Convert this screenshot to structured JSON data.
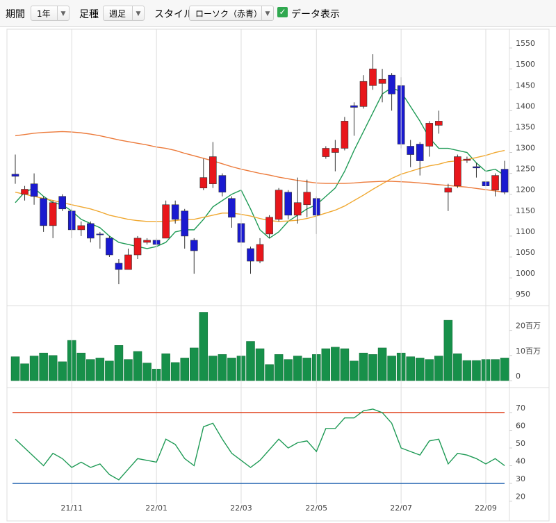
{
  "toolbar": {
    "period_label": "期間",
    "period": "1年",
    "bar_label": "足種",
    "bar": "週足",
    "style_label": "スタイル",
    "style": "ローソク（赤青）",
    "data_label": "データ表示",
    "data_checked": true
  },
  "chart_data": [
    {
      "type": "candlestick",
      "up_color": "#e8161b",
      "down_color": "#1a1ad0",
      "open": [
        1248,
        1200,
        1225,
        1190,
        1125,
        1195,
        1160,
        1115,
        1130,
        1105,
        1095,
        1035,
        1020,
        1055,
        1085,
        1090,
        1095,
        1175,
        1160,
        1090,
        1215,
        1225,
        1245,
        1190,
        1130,
        1070,
        1040,
        1105,
        1140,
        1205,
        1150,
        1175,
        1190,
        1290,
        1300,
        1310,
        1412,
        1410,
        1460,
        1465,
        1485,
        1460,
        1315,
        1320,
        1315,
        1365,
        1205,
        1220,
        1281,
        1266,
        1230,
        1210,
        1260
      ],
      "high": [
        1295,
        1220,
        1250,
        1195,
        1185,
        1200,
        1165,
        1135,
        1135,
        1110,
        1100,
        1045,
        1070,
        1100,
        1095,
        1095,
        1185,
        1185,
        1165,
        1095,
        1285,
        1325,
        1250,
        1195,
        1140,
        1075,
        1095,
        1150,
        1215,
        1210,
        1240,
        1235,
        1195,
        1315,
        1330,
        1385,
        1420,
        1485,
        1535,
        1500,
        1490,
        1480,
        1330,
        1325,
        1375,
        1400,
        1225,
        1295,
        1290,
        1275,
        1240,
        1250,
        1280
      ],
      "low": [
        1225,
        1185,
        1175,
        1110,
        1095,
        1160,
        1095,
        1100,
        1085,
        1070,
        1050,
        985,
        1020,
        1045,
        1080,
        1075,
        1095,
        1130,
        1070,
        1010,
        1210,
        1215,
        1195,
        1120,
        1075,
        1010,
        1035,
        1095,
        1135,
        1140,
        1130,
        1145,
        1105,
        1285,
        1255,
        1305,
        1340,
        1405,
        1450,
        1420,
        1400,
        1310,
        1265,
        1245,
        1290,
        1345,
        1160,
        1215,
        1275,
        1240,
        1210,
        1195,
        1200
      ],
      "close": [
        1243,
        1212,
        1195,
        1125,
        1180,
        1165,
        1115,
        1125,
        1095,
        1103,
        1055,
        1020,
        1055,
        1095,
        1090,
        1080,
        1175,
        1140,
        1100,
        1065,
        1240,
        1290,
        1205,
        1145,
        1085,
        1040,
        1080,
        1145,
        1210,
        1150,
        1180,
        1205,
        1150,
        1310,
        1310,
        1375,
        1408,
        1470,
        1500,
        1475,
        1440,
        1320,
        1295,
        1280,
        1370,
        1375,
        1215,
        1290,
        1284,
        1263,
        1220,
        1245,
        1205
      ],
      "moving_averages": [
        {
          "color": "#1e9a55",
          "values": [
            1180,
            1205,
            1215,
            1195,
            1180,
            1175,
            1160,
            1140,
            1130,
            1120,
            1100,
            1085,
            1080,
            1075,
            1070,
            1075,
            1085,
            1110,
            1115,
            1115,
            1140,
            1170,
            1185,
            1200,
            1210,
            1165,
            1115,
            1095,
            1110,
            1135,
            1150,
            1165,
            1175,
            1195,
            1215,
            1255,
            1305,
            1350,
            1395,
            1440,
            1455,
            1445,
            1410,
            1375,
            1335,
            1310,
            1310,
            1305,
            1300,
            1275,
            1255,
            1260,
            1245
          ]
        },
        {
          "color": "#f0a830",
          "values": [
            1205,
            1200,
            1195,
            1190,
            1185,
            1180,
            1175,
            1170,
            1165,
            1158,
            1150,
            1145,
            1140,
            1137,
            1135,
            1135,
            1135,
            1137,
            1140,
            1140,
            1145,
            1150,
            1155,
            1155,
            1152,
            1148,
            1142,
            1137,
            1135,
            1136,
            1138,
            1142,
            1148,
            1155,
            1162,
            1172,
            1185,
            1198,
            1212,
            1225,
            1238,
            1248,
            1255,
            1262,
            1268,
            1272,
            1278,
            1280,
            1283,
            1288,
            1293,
            1300,
            1305
          ]
        },
        {
          "color": "#ec7a3a",
          "values": [
            1340,
            1343,
            1346,
            1348,
            1349,
            1350,
            1349,
            1347,
            1344,
            1340,
            1335,
            1330,
            1326,
            1322,
            1318,
            1313,
            1310,
            1305,
            1298,
            1292,
            1286,
            1280,
            1273,
            1266,
            1260,
            1255,
            1250,
            1246,
            1241,
            1237,
            1233,
            1230,
            1227,
            1226,
            1226,
            1226,
            1227,
            1229,
            1230,
            1231,
            1231,
            1230,
            1229,
            1227,
            1225,
            1223,
            1221,
            1219,
            1217,
            1214,
            1211,
            1208,
            1205
          ]
        }
      ],
      "ylim": [
        937,
        1590
      ],
      "yticks": [
        950,
        1000,
        1050,
        1100,
        1150,
        1200,
        1250,
        1300,
        1350,
        1400,
        1450,
        1500,
        1550
      ]
    },
    {
      "type": "bar",
      "color": "#17904a",
      "values": [
        9.5,
        6.7,
        9.8,
        11,
        10,
        7.5,
        16,
        11,
        8.4,
        9,
        7.8,
        14,
        8.4,
        11.6,
        7,
        4.6,
        10.7,
        7.2,
        9,
        13,
        27.2,
        9.8,
        10.4,
        9,
        9.8,
        15.6,
        12.7,
        6.4,
        10.4,
        8.4,
        9.8,
        9,
        10.4,
        12.7,
        13.3,
        12.7,
        7.8,
        11,
        10.4,
        13,
        9.8,
        11,
        9.5,
        9,
        8.4,
        9.8,
        24,
        10.7,
        8,
        8,
        8.4,
        8.4,
        9
      ],
      "ylim": [
        0,
        29
      ],
      "yticks": [
        0,
        {
          "value": 10,
          "label": "10百万"
        },
        {
          "value": 20,
          "label": "20百万"
        }
      ]
    },
    {
      "type": "line",
      "color": "#1e9a55",
      "values": [
        55,
        50,
        45,
        40,
        47,
        44,
        39,
        42,
        39,
        41,
        35,
        32,
        38,
        44,
        43,
        42,
        55,
        52,
        44,
        40,
        62,
        64,
        55,
        47,
        43,
        39,
        43,
        49,
        55,
        50,
        53,
        54,
        48,
        61,
        61,
        67,
        67,
        71,
        72,
        70,
        64,
        50,
        48,
        46,
        54,
        55,
        41,
        47,
        46,
        44,
        41,
        44,
        40
      ],
      "categories": [
        null,
        null,
        null,
        null,
        null,
        null,
        "21/11",
        null,
        null,
        null,
        null,
        null,
        null,
        null,
        null,
        "22/01",
        null,
        null,
        null,
        null,
        null,
        null,
        null,
        null,
        "22/03",
        null,
        null,
        null,
        null,
        null,
        null,
        null,
        "22/05",
        null,
        null,
        null,
        null,
        null,
        null,
        null,
        null,
        "22/07",
        null,
        null,
        null,
        null,
        null,
        null,
        null,
        null,
        "22/09",
        null,
        null
      ],
      "reference_lines": [
        {
          "value": 70,
          "color": "#e0401c"
        },
        {
          "value": 30,
          "color": "#2264b0"
        }
      ],
      "ylim": [
        18.6,
        81.4
      ],
      "yticks": [
        20,
        30,
        40,
        50,
        60,
        70
      ]
    }
  ]
}
